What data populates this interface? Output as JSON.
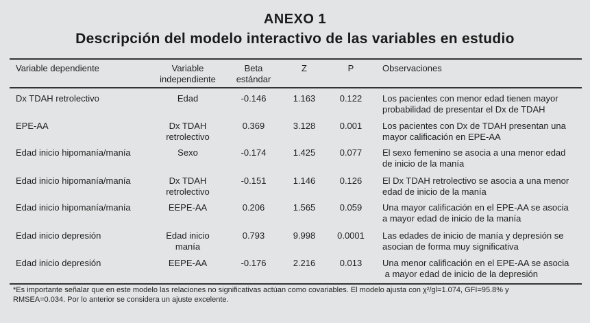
{
  "annex": {
    "title": "ANEXO 1",
    "subtitle": "Descripción del modelo interactivo de las variables en estudio"
  },
  "table": {
    "headers": [
      [
        "Variable dependiente"
      ],
      [
        "Variable",
        "independiente"
      ],
      [
        "Beta",
        "estándar"
      ],
      [
        "Z"
      ],
      [
        "P"
      ],
      [
        "Observaciones"
      ]
    ],
    "rows": [
      {
        "dependent": "Dx TDAH retrolectivo",
        "independent": [
          "Edad"
        ],
        "beta": "-0.146",
        "z": "1.163",
        "p": "0.122",
        "obs": [
          "Los pacientes con menor edad tienen mayor",
          "probabilidad de presentar el Dx de TDAH"
        ]
      },
      {
        "dependent": "EPE-AA",
        "independent": [
          "Dx TDAH",
          "retrolectivo"
        ],
        "beta": "0.369",
        "z": "3.128",
        "p": "0.001",
        "obs": [
          "Los pacientes con Dx de TDAH presentan una",
          "mayor calificación en EPE-AA"
        ]
      },
      {
        "dependent": "Edad inicio hipomanía/manía",
        "independent": [
          "Sexo"
        ],
        "beta": "-0.174",
        "z": "1.425",
        "p": "0.077",
        "obs": [
          "El sexo femenino se asocia a una menor edad",
          "de inicio de la manía"
        ]
      },
      {
        "dependent": "Edad inicio hipomanía/manía",
        "independent": [
          "Dx TDAH",
          "retrolectivo"
        ],
        "beta": "-0.151",
        "z": "1.146",
        "p": "0.126",
        "obs": [
          "El Dx TDAH retrolectivo se asocia a una menor",
          "edad de inicio de la manía"
        ]
      },
      {
        "dependent": "Edad inicio hipomanía/manía",
        "independent": [
          "EEPE-AA"
        ],
        "beta": "0.206",
        "z": "1.565",
        "p": "0.059",
        "obs": [
          "Una mayor calificación en el EPE-AA se asocia",
          "a mayor edad de inicio de la manía"
        ]
      },
      {
        "dependent": "Edad inicio depresión",
        "independent": [
          "Edad inicio",
          "manía"
        ],
        "beta": "0.793",
        "z": "9.998",
        "p": "0.0001",
        "obs": [
          "Las edades de inicio de manía y depresión se",
          "asocian de forma muy significativa"
        ]
      },
      {
        "dependent": "Edad inicio depresión",
        "independent": [
          "EEPE-AA"
        ],
        "beta": "-0.176",
        "z": "2.216",
        "p": "0.013",
        "obs": [
          "Una menor calificación en el EPE-AA se asocia",
          " a mayor edad de inicio de la depresión"
        ]
      }
    ]
  },
  "footnote": [
    "*Es importante señalar que en este modelo las relaciones no significativas actúan como covariables. El modelo ajusta con χ²/gl=1.074, GFI=95.8% y",
    "RMSEA=0.034. Por lo anterior se considera un ajuste excelente."
  ]
}
